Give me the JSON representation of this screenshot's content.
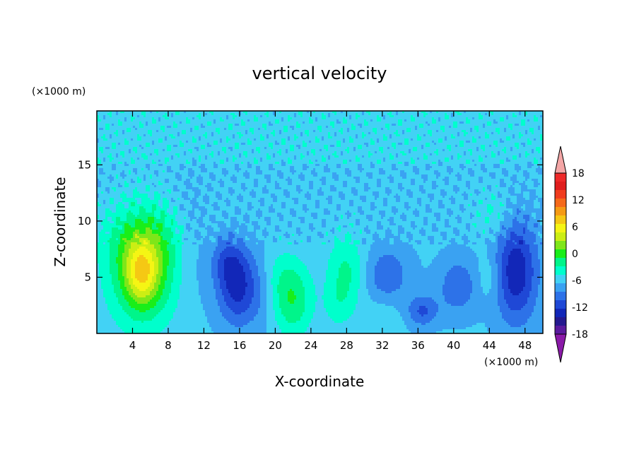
{
  "chart_data": {
    "type": "heatmap",
    "title": "vertical velocity",
    "xlabel": "X-coordinate",
    "ylabel": "Z-coordinate",
    "x_unit": "(×1000 m)",
    "y_unit": "(×1000 m)",
    "xlim": [
      0,
      50
    ],
    "ylim": [
      0,
      19.8
    ],
    "x_ticks": [
      4,
      8,
      12,
      16,
      20,
      24,
      28,
      32,
      36,
      40,
      44,
      48
    ],
    "x_tick_labels": [
      "4",
      "8",
      "12",
      "16",
      "20",
      "24",
      "28",
      "32",
      "36",
      "40",
      "44",
      "48"
    ],
    "y_ticks": [
      5,
      10,
      15
    ],
    "y_tick_labels": [
      "5",
      "10",
      "15"
    ],
    "colorbar": {
      "min": -21,
      "max": 21,
      "step": 3,
      "tick_values": [
        18,
        12,
        6,
        0,
        -6,
        -12,
        -18
      ],
      "tick_labels": [
        "18",
        "12",
        "6",
        "0",
        "-6",
        "-12",
        "-18"
      ],
      "colors": [
        "#8a1aa8",
        "#5a1a9e",
        "#25198f",
        "#1227b8",
        "#1f48d6",
        "#2d72e8",
        "#3aa2f2",
        "#42d2f5",
        "#00ffcc",
        "#00f58a",
        "#19ee19",
        "#7fe619",
        "#ccee14",
        "#f5f514",
        "#f5c814",
        "#f59a14",
        "#f5691a",
        "#f03c1e",
        "#e01e1e",
        "#ee2828",
        "#f4a6a6"
      ]
    },
    "features": [
      {
        "x": 5.2,
        "z": 5.8,
        "sx": 2.6,
        "sz": 3.4,
        "w": 13
      },
      {
        "x": 5.0,
        "z": 5.3,
        "sx": 1.2,
        "sz": 1.8,
        "w": 9
      },
      {
        "x": 5.5,
        "z": 8.5,
        "sx": 3.5,
        "sz": 2.0,
        "w": 3
      },
      {
        "x": 15.8,
        "z": 4.2,
        "sx": 1.6,
        "sz": 2.4,
        "w": -11
      },
      {
        "x": 14.5,
        "z": 6.5,
        "sx": 1.2,
        "sz": 1.5,
        "w": -5
      },
      {
        "x": 22.0,
        "z": 2.5,
        "sx": 1.5,
        "sz": 2.0,
        "w": 7
      },
      {
        "x": 21.0,
        "z": 5.0,
        "sx": 1.8,
        "sz": 1.8,
        "w": 4
      },
      {
        "x": 28.0,
        "z": 5.5,
        "sx": 1.5,
        "sz": 2.2,
        "w": 6
      },
      {
        "x": 27.0,
        "z": 2.5,
        "sx": 1.2,
        "sz": 1.5,
        "w": 3
      },
      {
        "x": 32.5,
        "z": 5.2,
        "sx": 1.8,
        "sz": 1.8,
        "w": -6
      },
      {
        "x": 32.0,
        "z": 1.5,
        "sx": 1.5,
        "sz": 1.3,
        "w": 2
      },
      {
        "x": 36.5,
        "z": 2.0,
        "sx": 1.2,
        "sz": 1.0,
        "w": -7
      },
      {
        "x": 40.5,
        "z": 4.2,
        "sx": 1.6,
        "sz": 1.8,
        "w": -6
      },
      {
        "x": 44.0,
        "z": 5.0,
        "sx": 1.0,
        "sz": 1.5,
        "w": 3
      },
      {
        "x": 47.0,
        "z": 5.5,
        "sx": 1.7,
        "sz": 3.2,
        "w": -12
      },
      {
        "x": 44.5,
        "z": 10.5,
        "sx": 1.5,
        "sz": 1.5,
        "w": 3
      },
      {
        "x": 10.5,
        "z": 8.0,
        "sx": 1.5,
        "sz": 4.0,
        "w": -2
      },
      {
        "x": 18.5,
        "z": 3.5,
        "sx": 1.0,
        "sz": 2.5,
        "w": -2
      }
    ]
  }
}
